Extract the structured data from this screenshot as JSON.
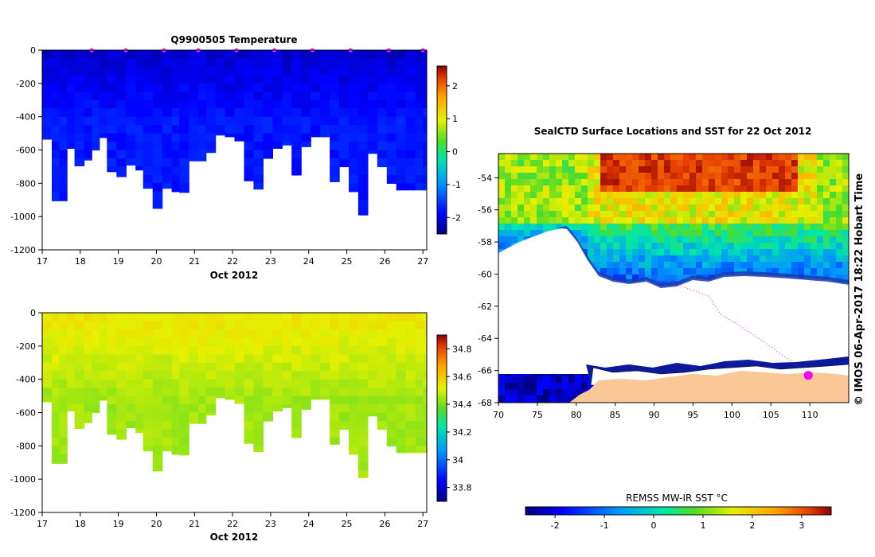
{
  "figure": {
    "credit": "© IMOS 06-Apr-2017 18:22 Hobart Time"
  },
  "chart_data": [
    {
      "type": "heatmap",
      "title": "Q9900505  Temperature",
      "xlabel": "Oct 2012",
      "ylabel": "",
      "xlim": [
        17,
        27.1
      ],
      "ylim": [
        -1200,
        0
      ],
      "x_ticks": [
        "17",
        "18",
        "19",
        "20",
        "21",
        "22",
        "23",
        "24",
        "25",
        "26",
        "27"
      ],
      "y_ticks": [
        "0",
        "-200",
        "-400",
        "-600",
        "-800",
        "-1000",
        "-1200"
      ],
      "profile_days": [
        17.0,
        17.25,
        17.45,
        17.65,
        17.85,
        18.1,
        18.3,
        18.5,
        18.7,
        18.95,
        19.2,
        19.45,
        19.65,
        19.9,
        20.15,
        20.4,
        20.6,
        20.85,
        21.1,
        21.3,
        21.55,
        21.8,
        22.05,
        22.3,
        22.55,
        22.8,
        23.05,
        23.3,
        23.55,
        23.8,
        24.05,
        24.3,
        24.55,
        24.8,
        25.05,
        25.3,
        25.55,
        25.8,
        26.05,
        26.3,
        26.55,
        26.8,
        27.0
      ],
      "profile_max_depth": [
        -535,
        -905,
        -905,
        -590,
        -695,
        -660,
        -600,
        -525,
        -730,
        -760,
        -690,
        -720,
        -830,
        -950,
        -830,
        -850,
        -855,
        -665,
        -665,
        -615,
        -510,
        -520,
        -545,
        -785,
        -835,
        -650,
        -590,
        -570,
        -750,
        -580,
        -520,
        -520,
        -790,
        -700,
        -850,
        -990,
        -620,
        -700,
        -800,
        -840,
        -840,
        -840,
        -840
      ],
      "surface_markers_day": [
        18.3,
        19.2,
        20.2,
        21.1,
        22.1,
        23.1,
        24.1,
        25.1,
        26.1,
        27.0
      ],
      "colorbar": {
        "min": -2.5,
        "max": 2.6,
        "ticks": [
          "2",
          "1",
          "0",
          "-1",
          "-2"
        ]
      }
    },
    {
      "type": "heatmap",
      "title": "",
      "xlabel": "Oct 2012",
      "ylabel": "",
      "xlim": [
        17,
        27.1
      ],
      "ylim": [
        -1200,
        0
      ],
      "x_ticks": [
        "17",
        "18",
        "19",
        "20",
        "21",
        "22",
        "23",
        "24",
        "25",
        "26",
        "27"
      ],
      "y_ticks": [
        "0",
        "-200",
        "-400",
        "-600",
        "-800",
        "-1000",
        "-1200"
      ],
      "colorbar": {
        "min": 33.7,
        "max": 34.9,
        "ticks": [
          "34.8",
          "34.6",
          "34.4",
          "34.2",
          "34",
          "33.8"
        ]
      }
    },
    {
      "type": "heatmap",
      "title": "SealCTD Surface Locations and SST for 22 Oct 2012",
      "xlabel": "",
      "ylabel": "",
      "xlim": [
        70,
        115
      ],
      "ylim": [
        -68,
        -52.5
      ],
      "x_ticks": [
        "70",
        "75",
        "80",
        "85",
        "90",
        "95",
        "100",
        "105",
        "110"
      ],
      "y_ticks": [
        "-54",
        "-56",
        "-58",
        "-60",
        "-62",
        "-64",
        "-66",
        "-68"
      ],
      "colorbar": {
        "title": "REMSS MW-IR SST °C",
        "min": -2.6,
        "max": 3.6,
        "ticks": [
          "-2",
          "-1",
          "0",
          "1",
          "2",
          "3"
        ]
      },
      "track_marker_lonlat": [
        109.8,
        -66.3
      ]
    }
  ]
}
